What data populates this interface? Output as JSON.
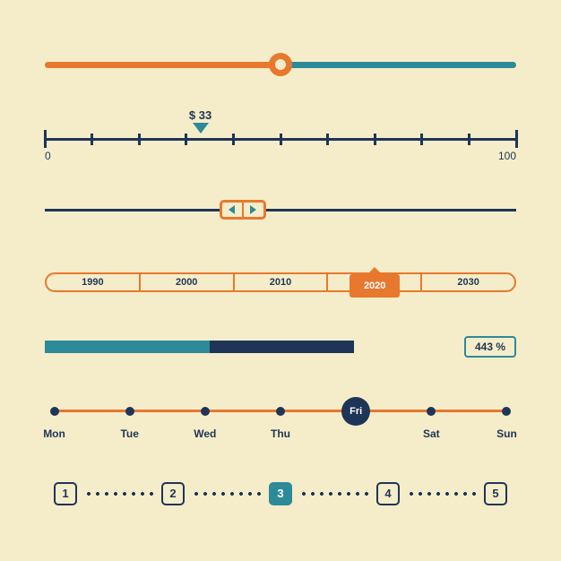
{
  "colors": {
    "bg": "#f5edc9",
    "orange": "#e8782e",
    "teal": "#2d8a99",
    "navy": "#1e3557",
    "white": "#ffffff"
  },
  "slider1": {
    "position_pct": 50,
    "left_color": "#e8782e",
    "right_color": "#2d8a99",
    "ring_color": "#e8782e"
  },
  "slider2": {
    "min": 0,
    "max": 100,
    "value": 33,
    "label": "$ 33",
    "line_color": "#1e3557",
    "pointer_color": "#2d8a99",
    "text_color": "#1e3557",
    "tick_count": 11
  },
  "slider3": {
    "line_color": "#1e3557",
    "box_border": "#e8782e",
    "arrow_color": "#2d8a99",
    "position_pct": 42
  },
  "slider4": {
    "years": [
      "1990",
      "2000",
      "2010",
      "2020",
      "2030"
    ],
    "active_index": 3,
    "pill_border": "#e8782e",
    "text_color": "#1e3557",
    "marker_color": "#e8782e"
  },
  "slider5": {
    "fill1_pct": 40,
    "fill2_pct": 35,
    "fill1_color": "#2d8a99",
    "fill2_color": "#1e3557",
    "value": "443 %",
    "badge_border": "#2d8a99",
    "badge_text": "#1e3557"
  },
  "slider6": {
    "days": [
      "Mon",
      "Tue",
      "Wed",
      "Thu",
      "Fri",
      "Sat",
      "Sun"
    ],
    "active_index": 4,
    "line_color": "#e8782e",
    "dot_color": "#1e3557",
    "active_bg": "#1e3557",
    "text_color": "#1e3557"
  },
  "slider7": {
    "pages": [
      "1",
      "2",
      "3",
      "4",
      "5"
    ],
    "active_index": 2,
    "box_border": "#1e3557",
    "text_color": "#1e3557",
    "active_bg": "#2d8a99",
    "active_border": "#2d8a99",
    "dot_color": "#1e3557"
  }
}
